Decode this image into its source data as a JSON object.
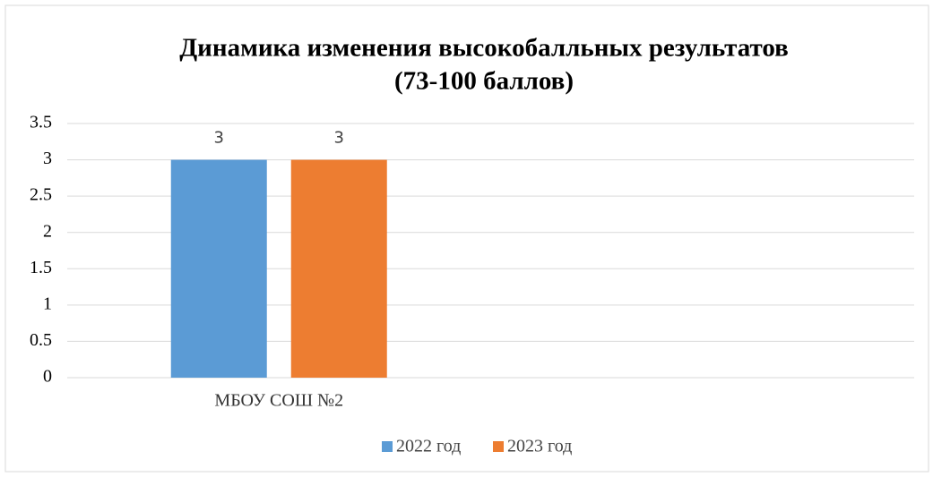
{
  "chart_data": {
    "type": "bar",
    "title": [
      "Динамика изменения высокобалльных результатов",
      "(73-100 баллов)"
    ],
    "categories": [
      "МБОУ СОШ №2",
      null
    ],
    "series": [
      {
        "name": "2022 год",
        "color": "#5b9bd5",
        "values": [
          3,
          null
        ]
      },
      {
        "name": "2023 год",
        "color": "#ed7d31",
        "values": [
          3,
          null
        ]
      }
    ],
    "ylim": [
      0,
      3.5
    ],
    "yticks": [
      0,
      0.5,
      1,
      1.5,
      2,
      2.5,
      3,
      3.5
    ],
    "grid": true,
    "legend": "bottom"
  }
}
